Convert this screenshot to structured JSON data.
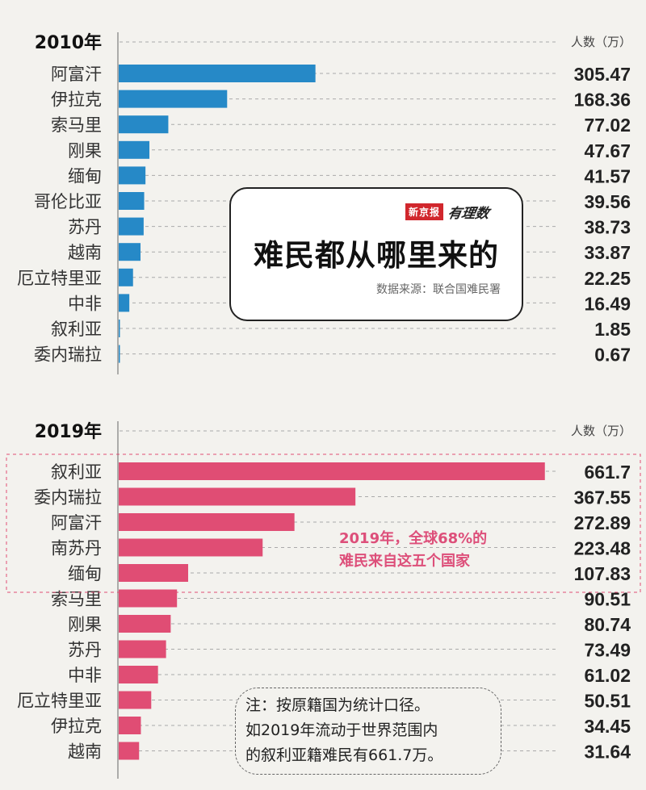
{
  "chart_data": [
    {
      "type": "bar",
      "orientation": "horizontal",
      "title": "2010年",
      "unit": "人数（万）",
      "categories": [
        "阿富汗",
        "伊拉克",
        "索马里",
        "刚果",
        "缅甸",
        "哥伦比亚",
        "苏丹",
        "越南",
        "厄立特里亚",
        "中非",
        "叙利亚",
        "委内瑞拉"
      ],
      "values": [
        305.47,
        168.36,
        77.02,
        47.67,
        41.57,
        39.56,
        38.73,
        33.87,
        22.25,
        16.49,
        1.85,
        0.67
      ],
      "value_labels": [
        "305.47",
        "168.36",
        "77.02",
        "47.67",
        "41.57",
        "39.56",
        "38.73",
        "33.87",
        "22.25",
        "16.49",
        "1.85",
        "0.67"
      ],
      "color": "#2689c7",
      "xlim": [
        0,
        662
      ],
      "grid": "dashed horizontal lines per row"
    },
    {
      "type": "bar",
      "orientation": "horizontal",
      "title": "2019年",
      "unit": "人数（万）",
      "categories": [
        "叙利亚",
        "委内瑞拉",
        "阿富汗",
        "南苏丹",
        "缅甸",
        "索马里",
        "刚果",
        "苏丹",
        "中非",
        "厄立特里亚",
        "伊拉克",
        "越南"
      ],
      "values": [
        661.7,
        367.55,
        272.89,
        223.48,
        107.83,
        90.51,
        80.74,
        73.49,
        61.02,
        50.51,
        34.45,
        31.64
      ],
      "value_labels": [
        "661.7",
        "367.55",
        "272.89",
        "223.48",
        "107.83",
        "90.51",
        "80.74",
        "73.49",
        "61.02",
        "50.51",
        "34.45",
        "31.64"
      ],
      "color": "#e04d74",
      "xlim": [
        0,
        662
      ],
      "grid": "dashed horizontal lines per row",
      "annotation": {
        "lines": [
          "2019年，全球68%的",
          "难民来自这五个国家"
        ],
        "color": "#dd4f7a"
      }
    }
  ],
  "info_box": {
    "brand_red": "新京报",
    "brand_script": "有理数",
    "title": "难民都从哪里来的",
    "source": "数据来源：联合国难民署"
  },
  "note": {
    "lines": [
      "注：按原籍国为统计口径。",
      "如2019年流动于世界范围内",
      "的叙利亚籍难民有661.7万。"
    ]
  }
}
